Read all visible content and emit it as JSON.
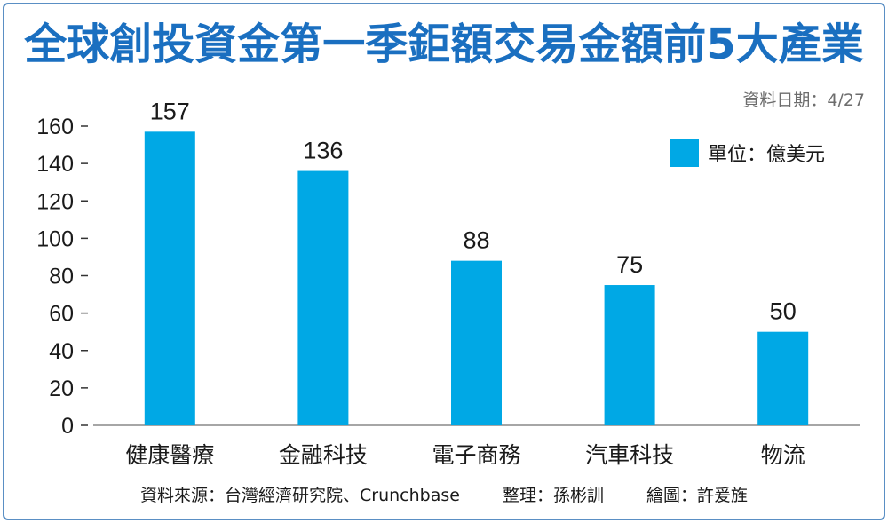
{
  "title": "全球創投資金第一季鉅額交易金額前5大產業",
  "date_note": "資料日期：4/27",
  "legend": {
    "label": "單位：億美元",
    "color": "#00a8e5"
  },
  "footer": {
    "source": "資料來源：台灣經濟研究院、Crunchbase",
    "editor": "整理：孫彬訓",
    "illustrator": "繪圖：許爰旌"
  },
  "chart_data": {
    "type": "bar",
    "categories": [
      "健康醫療",
      "金融科技",
      "電子商務",
      "汽車科技",
      "物流"
    ],
    "values": [
      157,
      136,
      88,
      75,
      50
    ],
    "ylim": [
      0,
      160
    ],
    "yticks": [
      0,
      20,
      40,
      60,
      80,
      100,
      120,
      140,
      160
    ],
    "unit": "億美元",
    "bar_color": "#00a8e5",
    "grid": false,
    "legend_position": "top-right"
  }
}
